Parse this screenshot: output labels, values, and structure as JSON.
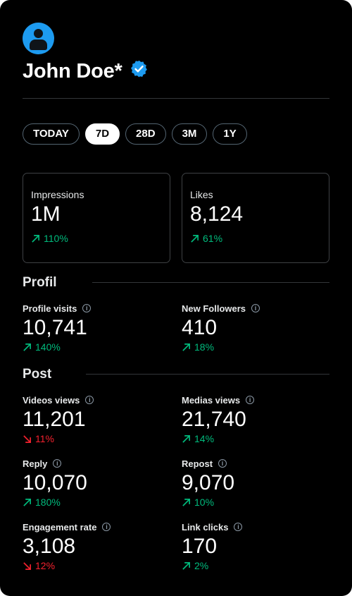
{
  "profile": {
    "name": "John Doe*",
    "avatar_icon": "user-avatar-icon",
    "verified_icon": "verified-badge-icon",
    "accent": "#1d9bf0"
  },
  "tabs": [
    {
      "label": "TODAY",
      "active": false
    },
    {
      "label": "7D",
      "active": true
    },
    {
      "label": "28D",
      "active": false
    },
    {
      "label": "3M",
      "active": false
    },
    {
      "label": "1Y",
      "active": false
    }
  ],
  "summary": {
    "impressions": {
      "label": "Impressions",
      "value": "1M",
      "change": "110%",
      "trend": "up"
    },
    "likes": {
      "label": "Likes",
      "value": "8,124",
      "change": "61%",
      "trend": "up"
    }
  },
  "profil": {
    "title": "Profil",
    "profile_visits": {
      "label": "Profile visits",
      "value": "10,741",
      "change": "140%",
      "trend": "up"
    },
    "new_followers": {
      "label": "New Followers",
      "value": "410",
      "change": "18%",
      "trend": "up"
    }
  },
  "post": {
    "title": "Post",
    "videos_views": {
      "label": "Videos views",
      "value": "11,201",
      "change": "11%",
      "trend": "down"
    },
    "medias_views": {
      "label": "Medias views",
      "value": "21,740",
      "change": "14%",
      "trend": "up"
    },
    "reply": {
      "label": "Reply",
      "value": "10,070",
      "change": "180%",
      "trend": "up"
    },
    "repost": {
      "label": "Repost",
      "value": "9,070",
      "change": "10%",
      "trend": "up"
    },
    "engagement_rate": {
      "label": "Engagement rate",
      "value": "3,108",
      "change": "12%",
      "trend": "down"
    },
    "link_clicks": {
      "label": "Link clicks",
      "value": "170",
      "change": "2%",
      "trend": "up"
    }
  },
  "colors": {
    "up": "#00ba7c",
    "down": "#f4212e",
    "background": "#000000"
  }
}
